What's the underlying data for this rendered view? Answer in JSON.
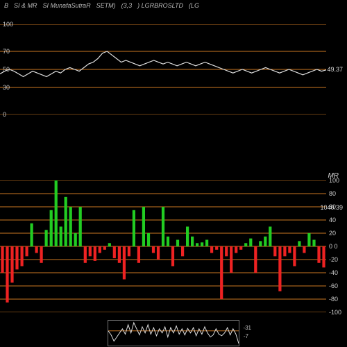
{
  "header": {
    "items": [
      "B",
      "SI & MR",
      "SI MunafaSutraR",
      "SETM)",
      "(3,3",
      ") LGRBROSLTD",
      "(LG"
    ]
  },
  "colors": {
    "background": "#000000",
    "grid_orange": "#cc7722",
    "line_white": "#dddddd",
    "bar_green": "#22cc22",
    "bar_red": "#ee2222",
    "text": "#cccccc"
  },
  "top_chart": {
    "type": "line",
    "ylim": [
      0,
      100
    ],
    "grid_lines": [
      0,
      30,
      50,
      70,
      100
    ],
    "grid_labels": [
      "0",
      "30",
      "50",
      "70",
      "100"
    ],
    "last_value": "49.37",
    "line_fontsize": 9,
    "data": [
      45,
      48,
      50,
      48,
      45,
      42,
      45,
      48,
      46,
      44,
      42,
      45,
      48,
      46,
      50,
      52,
      50,
      48,
      52,
      56,
      58,
      62,
      68,
      70,
      66,
      62,
      58,
      60,
      58,
      56,
      54,
      56,
      58,
      60,
      58,
      56,
      58,
      56,
      54,
      56,
      58,
      56,
      54,
      56,
      58,
      56,
      54,
      52,
      50,
      48,
      46,
      48,
      50,
      48,
      46,
      48,
      50,
      52,
      50,
      48,
      46,
      48,
      50,
      48,
      46,
      44,
      46,
      48,
      50,
      48,
      49.37
    ]
  },
  "bottom_chart": {
    "type": "bar",
    "ylim": [
      -100,
      100
    ],
    "grid_lines": [
      -100,
      -80,
      -60,
      -40,
      -20,
      0,
      20,
      40,
      60,
      80,
      100
    ],
    "grid_labels": [
      "-100",
      "-80",
      "-60",
      "-40",
      "-20",
      "0  0",
      "20",
      "40",
      "60",
      "80",
      "100"
    ],
    "price_label": "1040.39",
    "label_fontsize": 9,
    "bars": [
      -40,
      -85,
      -55,
      -35,
      -30,
      -15,
      35,
      -10,
      -25,
      25,
      55,
      105,
      30,
      75,
      60,
      20,
      60,
      -25,
      -15,
      -22,
      -10,
      -5,
      5,
      -18,
      -25,
      -50,
      -15,
      55,
      -25,
      60,
      20,
      -10,
      -20,
      60,
      15,
      -30,
      10,
      -15,
      30,
      15,
      5,
      6,
      10,
      -10,
      -5,
      -80,
      -15,
      -40,
      -10,
      -5,
      5,
      12,
      -40,
      8,
      15,
      30,
      -15,
      -68,
      -15,
      -10,
      -30,
      8,
      -10,
      20,
      10,
      -25,
      -32
    ]
  },
  "mini_chart": {
    "type": "line",
    "value_label": "-31",
    "sub_label": "-7",
    "zero_line_color": "#cc7722",
    "data": [
      0,
      -10,
      -25,
      -15,
      -5,
      5,
      -8,
      15,
      -5,
      20,
      5,
      -10,
      10,
      -5,
      15,
      -8,
      8,
      -12,
      5,
      -5,
      10,
      -15,
      8,
      -5,
      12,
      -8,
      5,
      -10,
      6,
      -5,
      8,
      -12,
      5,
      -8,
      10,
      -5,
      -15,
      -10,
      5,
      -8,
      -12,
      -5,
      8,
      -10,
      5,
      -8,
      -31
    ]
  }
}
